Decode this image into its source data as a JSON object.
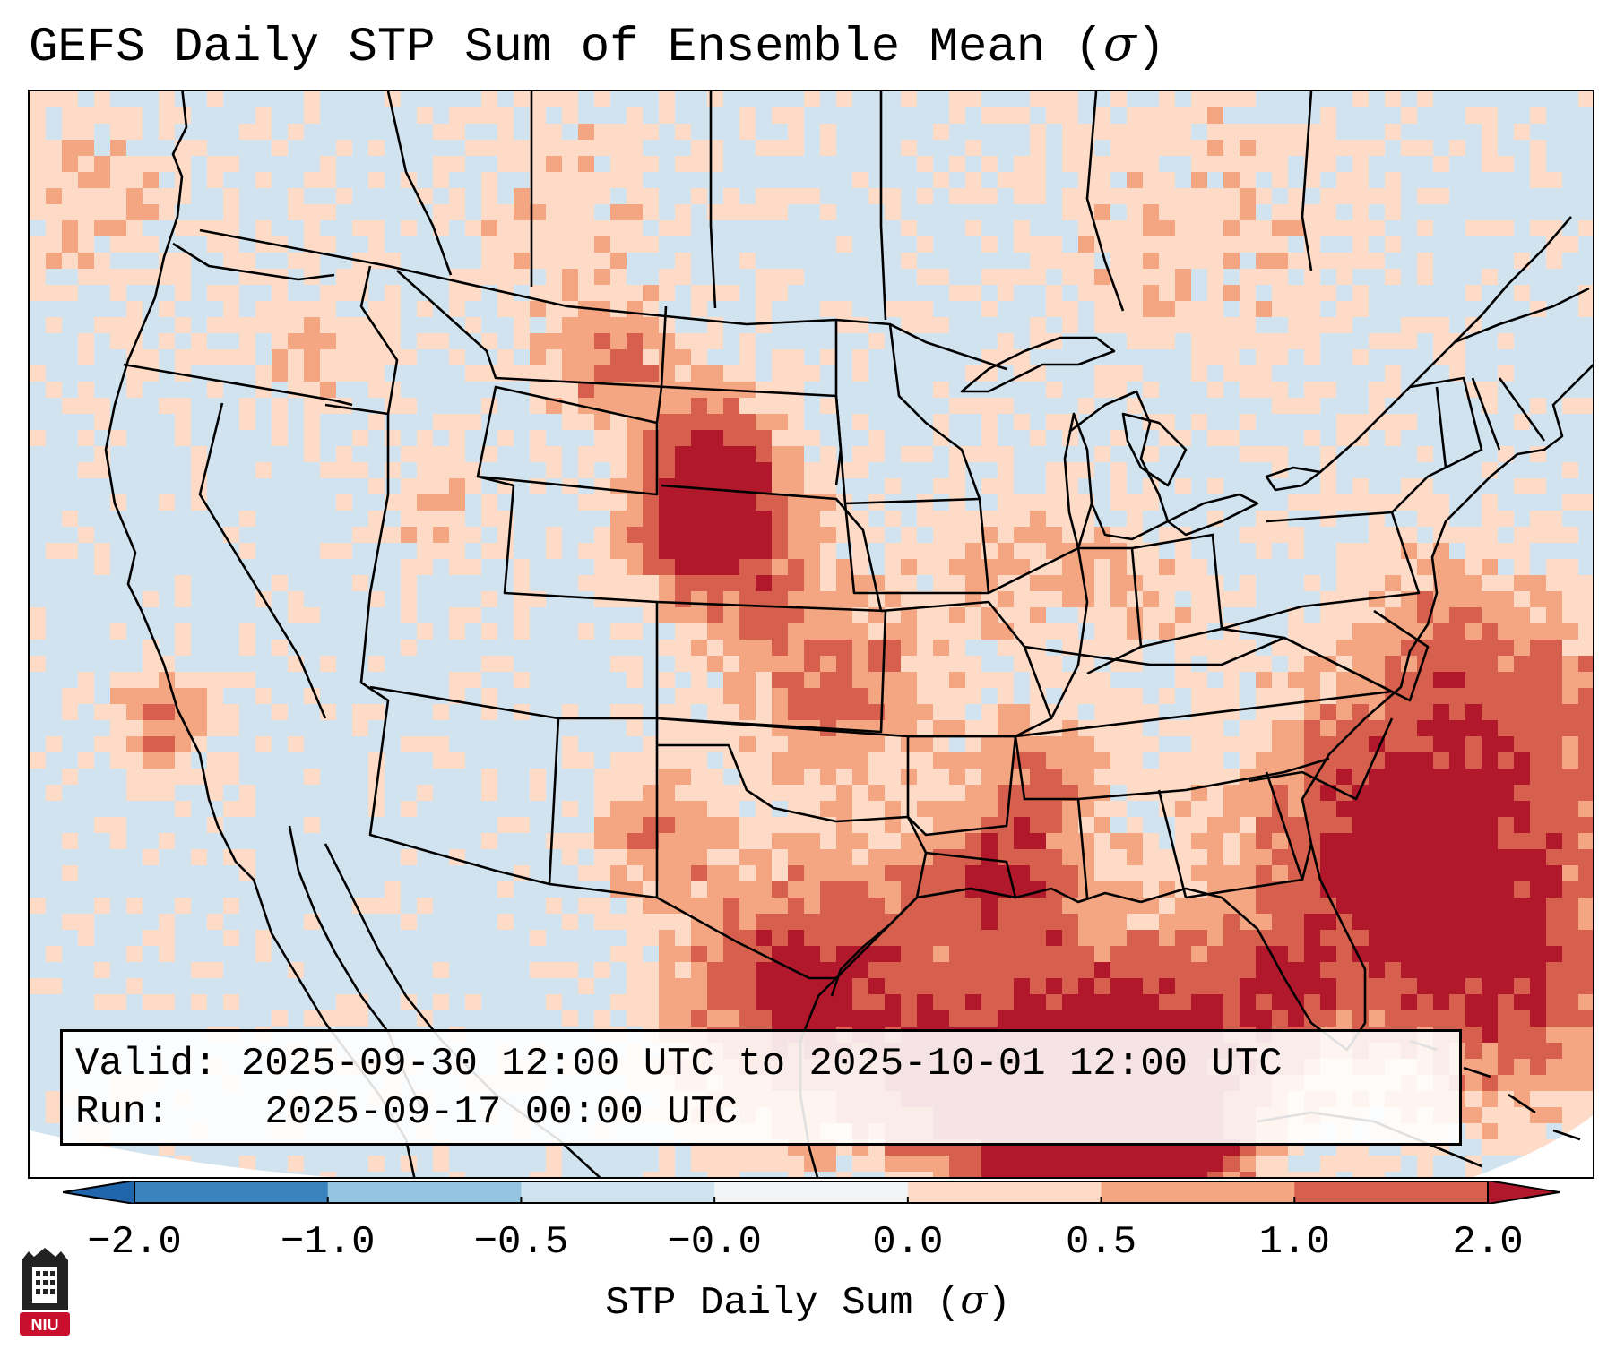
{
  "title": "GEFS Daily STP Sum of Ensemble Mean (",
  "title_symbol": "σ",
  "title_close": ")",
  "info": {
    "valid_label": "Valid:",
    "valid_value": "2025-09-30 12:00 UTC to 2025-10-01 12:00 UTC",
    "run_label": "Run:",
    "run_value": "2025-09-17 00:00 UTC"
  },
  "colorbar": {
    "ticks": [
      "−2.0",
      "−1.0",
      "−0.5",
      "−0.0",
      "0.0",
      "0.5",
      "1.0",
      "2.0"
    ],
    "colors": [
      "#3b83bd",
      "#94c4df",
      "#cfe3ef",
      "#f2f4f6",
      "#fddbc7",
      "#f4a582",
      "#d6604d"
    ],
    "extend_low_color": "#2166ac",
    "extend_high_color": "#b2182b",
    "label": "STP Daily Sum (",
    "label_symbol": "σ",
    "label_close": ")"
  },
  "map_colors": {
    "background": "#d0e3ef",
    "level_0_0_5": "#fddbc7",
    "level_0_5_1": "#f4a582",
    "level_1_2": "#d6604d",
    "level_gt2": "#b2182b",
    "lines": "#000000"
  },
  "logo": {
    "text": "NIU",
    "color": "#c8102e"
  }
}
